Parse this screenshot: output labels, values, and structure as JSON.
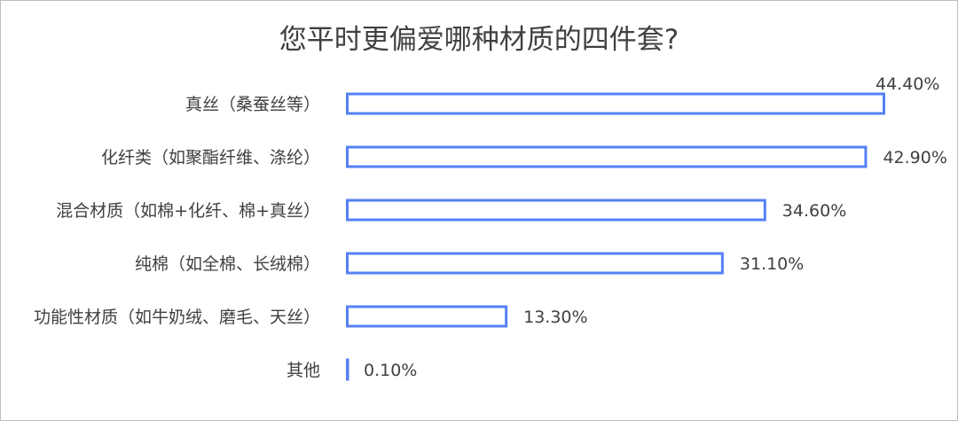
{
  "chart_data": {
    "type": "bar",
    "orientation": "horizontal",
    "title": "您平时更偏爱哪种材质的四件套?",
    "categories": [
      "真丝（桑蚕丝等）",
      "化纤类（如聚酯纤维、涤纶）",
      "混合材质（如棉+化纤、棉+真丝）",
      "纯棉（如全棉、长绒棉）",
      "功能性材质（如牛奶绒、磨毛、天丝）",
      "其他"
    ],
    "values": [
      44.4,
      42.9,
      34.6,
      31.1,
      13.3,
      0.1
    ],
    "value_labels": [
      "44.40%",
      "42.90%",
      "34.60%",
      "31.10%",
      "13.30%",
      "0.10%"
    ],
    "xlabel": "",
    "ylabel": "",
    "grid": false,
    "legend": "none",
    "bar_style": "outline",
    "bar_color": "#5580f5"
  }
}
